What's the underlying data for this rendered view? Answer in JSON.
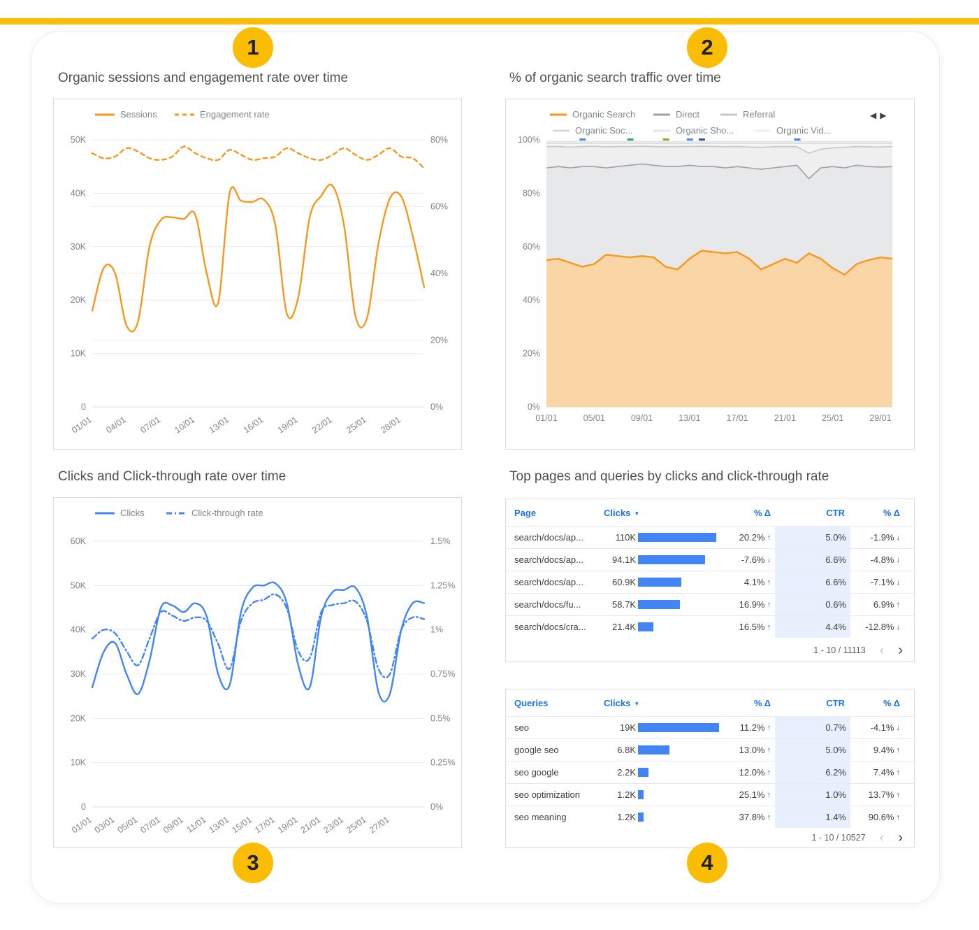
{
  "page": {
    "accent_color": "#FBBC04",
    "bar_color": "#4285F4",
    "badges": [
      {
        "label": "1"
      },
      {
        "label": "2"
      },
      {
        "label": "3"
      },
      {
        "label": "4"
      }
    ]
  },
  "panels": {
    "p1_title": "Organic sessions and engagement rate over time",
    "p2_title": "% of organic search traffic over time",
    "p3_title": "Clicks and Click-through rate over time",
    "p4_title": "Top pages and queries by clicks and click-through rate"
  },
  "icons": {
    "sort_desc": "▼",
    "page_prev": "‹",
    "page_next": "›",
    "arrow_up": "↑",
    "arrow_down": "↓"
  },
  "chart_data": [
    {
      "type": "line",
      "title": "Organic sessions and engagement rate over time",
      "n_points": 30,
      "x_tick_labels": [
        "01/01",
        "04/01",
        "07/01",
        "10/01",
        "13/01",
        "16/01",
        "19/01",
        "22/01",
        "25/01",
        "28/01"
      ],
      "x_tick_indices": [
        0,
        3,
        6,
        9,
        12,
        15,
        18,
        21,
        24,
        27
      ],
      "left_axis": {
        "min": 0,
        "max": 50,
        "ticks": [
          "0",
          "10K",
          "20K",
          "30K",
          "40K",
          "50K"
        ],
        "unit": "sessions (K)"
      },
      "right_axis": {
        "min": 0,
        "max": 80,
        "ticks": [
          "0%",
          "20%",
          "40%",
          "60%",
          "80%"
        ],
        "unit": "engagement rate"
      },
      "series": [
        {
          "name": "Sessions",
          "axis": "left",
          "color": "#F7981D",
          "dash": "",
          "values": [
            18,
            26,
            25,
            15.2,
            16,
            30,
            35,
            35.5,
            35.2,
            36,
            25,
            19.5,
            40,
            38.6,
            38.4,
            38.8,
            34,
            17.5,
            20.5,
            35.5,
            39.5,
            41.4,
            34,
            17,
            16.6,
            30.5,
            39,
            39.4,
            32,
            22.4
          ]
        },
        {
          "name": "Engagement rate",
          "axis": "right",
          "color": "#F7981D",
          "dash": "6 5",
          "values": [
            76,
            74.5,
            75,
            77.5,
            76.5,
            74.5,
            74,
            75,
            78,
            76,
            74.5,
            74,
            77,
            75.5,
            74,
            74.5,
            75,
            77.5,
            76,
            74.5,
            74,
            75.5,
            77.5,
            75.5,
            74,
            75.5,
            77.5,
            75,
            74.5,
            71.5
          ]
        }
      ]
    },
    {
      "type": "area_stacked_percent",
      "title": "% of organic search traffic over time",
      "n_points": 30,
      "x_tick_labels": [
        "01/01",
        "05/01",
        "09/01",
        "13/01",
        "17/01",
        "21/01",
        "25/01",
        "29/01"
      ],
      "x_tick_indices": [
        0,
        4,
        8,
        12,
        16,
        20,
        24,
        28
      ],
      "y_axis": {
        "min": 0,
        "max": 100,
        "ticks": [
          "0%",
          "20%",
          "40%",
          "60%",
          "80%",
          "100%"
        ]
      },
      "legend_nav": {
        "prev": "◀",
        "next": "▶"
      },
      "series": [
        {
          "name": "Organic Search",
          "color": "#F7981D",
          "fill": "#FAD5A6",
          "boundary": [
            55,
            55.5,
            54,
            52.5,
            53.5,
            57,
            56.5,
            56,
            56.5,
            56,
            52.5,
            51.5,
            55.5,
            58.5,
            58,
            57.5,
            58,
            55.5,
            51.5,
            53.5,
            55.5,
            54,
            57.5,
            55.5,
            52,
            49.5,
            53.5,
            55,
            56,
            55.5
          ]
        },
        {
          "name": "Direct",
          "color": "#9AA0A6",
          "fill": "#E7E8E9",
          "boundary": [
            89.5,
            90,
            89.5,
            90,
            90,
            89.5,
            90,
            90.5,
            91,
            90.5,
            90,
            90,
            90.5,
            90,
            90,
            89.5,
            90,
            89.5,
            89,
            89.5,
            90,
            90.5,
            85.5,
            89.5,
            90,
            89.5,
            90.5,
            90,
            89.8,
            90
          ]
        },
        {
          "name": "Referral",
          "color": "#C4C8CC",
          "fill": "#EFEFF0",
          "boundary": [
            97.5,
            97.5,
            97.3,
            97.5,
            97.6,
            97.4,
            97.5,
            97.5,
            97.6,
            97.5,
            97.4,
            97.5,
            97.5,
            97.6,
            97.5,
            97.4,
            97.5,
            97.3,
            97.2,
            97.4,
            97.5,
            97.4,
            95,
            96.5,
            97,
            97.2,
            97.5,
            97.4,
            97.3,
            97.5
          ]
        },
        {
          "name": "Organic Soc...",
          "color": "#D6D9DC",
          "fill": "#F4F5F5",
          "boundary_const": 98.7
        },
        {
          "name": "Organic Sho...",
          "color": "#E3E5E7",
          "fill": "#F8F8F9",
          "boundary_const": 99.3
        },
        {
          "name": "Organic Vid...",
          "color": "#EDEEEF",
          "fill": "#FBFBFC",
          "boundary_const": 100
        }
      ],
      "top_marks": [
        {
          "x": 3,
          "color": "#4285F4"
        },
        {
          "x": 7,
          "color": "#34A853"
        },
        {
          "x": 10,
          "color": "#9E9D24"
        },
        {
          "x": 12,
          "color": "#4285F4"
        },
        {
          "x": 13,
          "color": "#3949AB"
        },
        {
          "x": 21,
          "color": "#4285F4"
        }
      ]
    },
    {
      "type": "line",
      "title": "Clicks and Click-through rate over time",
      "n_points": 30,
      "x_tick_labels": [
        "01/01",
        "03/01",
        "05/01",
        "07/01",
        "09/01",
        "11/01",
        "13/01",
        "15/01",
        "17/01",
        "19/01",
        "21/01",
        "23/01",
        "25/01",
        "27/01"
      ],
      "x_tick_indices": [
        0,
        2,
        4,
        6,
        8,
        10,
        12,
        14,
        16,
        18,
        20,
        22,
        24,
        26
      ],
      "left_axis": {
        "min": 0,
        "max": 60,
        "ticks": [
          "0",
          "10K",
          "20K",
          "30K",
          "40K",
          "50K",
          "60K"
        ],
        "unit": "clicks (K)"
      },
      "right_axis": {
        "min": 0,
        "max": 1.5,
        "ticks": [
          "0%",
          "0.25%",
          "0.5%",
          "0.75%",
          "1%",
          "1.25%",
          "1.5%"
        ],
        "unit": "click-through rate"
      },
      "series": [
        {
          "name": "Clicks",
          "axis": "left",
          "color": "#4285F4",
          "dash": "",
          "values": [
            27,
            35,
            37,
            30,
            25.5,
            33,
            45,
            45.5,
            44,
            46,
            43,
            30,
            27.5,
            44,
            49.5,
            50,
            50.5,
            46,
            32,
            27,
            43,
            48.5,
            49,
            49.5,
            43,
            26,
            25.5,
            40,
            46,
            46
          ]
        },
        {
          "name": "Click-through rate",
          "axis": "right",
          "color": "#4285F4",
          "dash": "8 4 2 4",
          "values": [
            0.95,
            1.0,
            0.98,
            0.88,
            0.8,
            0.95,
            1.1,
            1.08,
            1.05,
            1.07,
            1.05,
            0.92,
            0.78,
            1.05,
            1.15,
            1.17,
            1.2,
            1.12,
            0.88,
            0.84,
            1.1,
            1.14,
            1.15,
            1.16,
            1.05,
            0.78,
            0.75,
            1.0,
            1.07,
            1.06
          ]
        }
      ]
    },
    {
      "type": "table",
      "columns": [
        "Page",
        "Clicks",
        "% Δ",
        "CTR",
        "% Δ"
      ],
      "max_clicks": 110000,
      "rows": [
        {
          "name": "search/docs/ap...",
          "clicks": "110K",
          "clicks_value": 110000,
          "delta": "20.2%",
          "delta_dir": "up",
          "ctr": "5.0%",
          "ctr_delta": "-1.9%",
          "ctr_delta_dir": "down"
        },
        {
          "name": "search/docs/ap...",
          "clicks": "94.1K",
          "clicks_value": 94100,
          "delta": "-7.6%",
          "delta_dir": "down",
          "ctr": "6.6%",
          "ctr_delta": "-4.8%",
          "ctr_delta_dir": "down"
        },
        {
          "name": "search/docs/ap...",
          "clicks": "60.9K",
          "clicks_value": 60900,
          "delta": "4.1%",
          "delta_dir": "up",
          "ctr": "6.6%",
          "ctr_delta": "-7.1%",
          "ctr_delta_dir": "down"
        },
        {
          "name": "search/docs/fu...",
          "clicks": "58.7K",
          "clicks_value": 58700,
          "delta": "16.9%",
          "delta_dir": "up",
          "ctr": "0.6%",
          "ctr_delta": "6.9%",
          "ctr_delta_dir": "up"
        },
        {
          "name": "search/docs/cra...",
          "clicks": "21.4K",
          "clicks_value": 21400,
          "delta": "16.5%",
          "delta_dir": "up",
          "ctr": "4.4%",
          "ctr_delta": "-12.8%",
          "ctr_delta_dir": "down"
        }
      ],
      "footer": "1 - 10 / 11113"
    },
    {
      "type": "table",
      "columns": [
        "Queries",
        "Clicks",
        "% Δ",
        "CTR",
        "% Δ"
      ],
      "max_clicks": 19000,
      "rows": [
        {
          "name": "seo",
          "clicks": "19K",
          "clicks_value": 19000,
          "delta": "11.2%",
          "delta_dir": "up",
          "ctr": "0.7%",
          "ctr_delta": "-4.1%",
          "ctr_delta_dir": "down"
        },
        {
          "name": "google seo",
          "clicks": "6.8K",
          "clicks_value": 6800,
          "delta": "13.0%",
          "delta_dir": "up",
          "ctr": "5.0%",
          "ctr_delta": "9.4%",
          "ctr_delta_dir": "up"
        },
        {
          "name": "seo google",
          "clicks": "2.2K",
          "clicks_value": 2200,
          "delta": "12.0%",
          "delta_dir": "up",
          "ctr": "6.2%",
          "ctr_delta": "7.4%",
          "ctr_delta_dir": "up"
        },
        {
          "name": "seo optimization",
          "clicks": "1.2K",
          "clicks_value": 1200,
          "delta": "25.1%",
          "delta_dir": "up",
          "ctr": "1.0%",
          "ctr_delta": "13.7%",
          "ctr_delta_dir": "up"
        },
        {
          "name": "seo meaning",
          "clicks": "1.2K",
          "clicks_value": 1200,
          "delta": "37.8%",
          "delta_dir": "up",
          "ctr": "1.4%",
          "ctr_delta": "90.6%",
          "ctr_delta_dir": "up"
        }
      ],
      "footer": "1 - 10 / 10527"
    }
  ]
}
